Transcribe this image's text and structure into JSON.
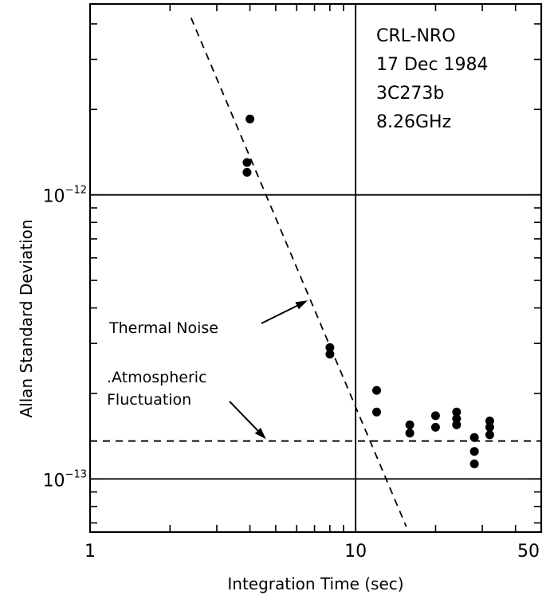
{
  "chart_data": {
    "type": "scatter",
    "title": "",
    "xlabel": "Integration Time (sec)",
    "ylabel": "Allan Standard Deviation",
    "xscale": "log",
    "yscale": "log",
    "xlim": [
      1,
      50
    ],
    "ylim": [
      6.5e-14,
      4.7e-12
    ],
    "x_tick_labels": [
      {
        "value": 1,
        "label": "1"
      },
      {
        "value": 10,
        "label": "10"
      },
      {
        "value": 50,
        "label": "50"
      }
    ],
    "y_tick_labels": [
      {
        "value": 1e-12,
        "base": "10",
        "exp": "−12"
      },
      {
        "value": 1e-13,
        "base": "10",
        "exp": "−13"
      }
    ],
    "grid": {
      "x": [
        10
      ],
      "y": [
        1e-12,
        1e-13
      ]
    },
    "info_lines": [
      "CRL-NRO",
      "17 Dec 1984",
      "3C273b",
      "8.26GHz"
    ],
    "points": [
      {
        "x": 4.0,
        "y": 1.85e-12
      },
      {
        "x": 3.9,
        "y": 1.3e-12
      },
      {
        "x": 3.9,
        "y": 1.2e-12
      },
      {
        "x": 8.0,
        "y": 2.9e-13
      },
      {
        "x": 8.0,
        "y": 2.75e-13
      },
      {
        "x": 12.0,
        "y": 2.05e-13
      },
      {
        "x": 12.0,
        "y": 1.72e-13
      },
      {
        "x": 16.0,
        "y": 1.55e-13
      },
      {
        "x": 16.0,
        "y": 1.45e-13
      },
      {
        "x": 20.0,
        "y": 1.67e-13
      },
      {
        "x": 20.0,
        "y": 1.52e-13
      },
      {
        "x": 24.0,
        "y": 1.72e-13
      },
      {
        "x": 24.0,
        "y": 1.63e-13
      },
      {
        "x": 24.0,
        "y": 1.55e-13
      },
      {
        "x": 28.0,
        "y": 1.4e-13
      },
      {
        "x": 28.0,
        "y": 1.25e-13
      },
      {
        "x": 28.0,
        "y": 1.13e-13
      },
      {
        "x": 32.0,
        "y": 1.6e-13
      },
      {
        "x": 32.0,
        "y": 1.52e-13
      },
      {
        "x": 32.0,
        "y": 1.43e-13
      }
    ],
    "lines": [
      {
        "name": "Thermal Noise",
        "style": "dashed",
        "points": [
          [
            2.4,
            4.2e-12
          ],
          [
            15.5,
            6.8e-14
          ]
        ]
      },
      {
        "name": "Atmospheric Fluctuation",
        "style": "dashed",
        "points": [
          [
            1.0,
            1.36e-13
          ],
          [
            50,
            1.36e-13
          ]
        ]
      }
    ],
    "annotations": [
      {
        "text": "Thermal Noise",
        "arrow_to": [
          6.6,
          4.25e-13
        ]
      },
      {
        "text": ".Atmospheric",
        "arrow_to": [
          4.6,
          1.38e-13
        ]
      },
      {
        "text": "Fluctuation"
      }
    ]
  }
}
